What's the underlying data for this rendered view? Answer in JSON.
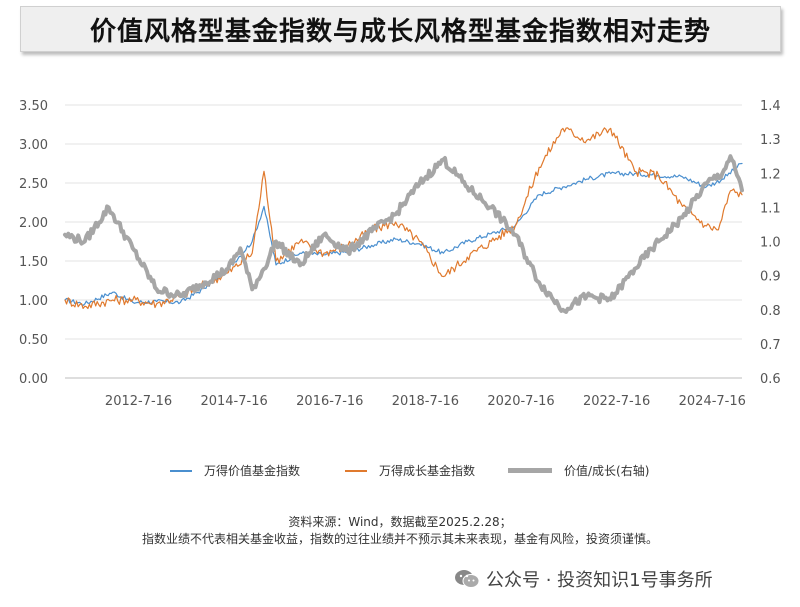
{
  "chart_data": {
    "type": "line",
    "title": "价值风格型基金指数与成长风格型基金指数相对走势",
    "x_tick_labels": [
      "2012-7-16",
      "2014-7-16",
      "2016-7-16",
      "2018-7-16",
      "2020-7-16",
      "2022-7-16",
      "2024-7-16"
    ],
    "x_range": [
      "2011-01-01",
      "2025-02-28"
    ],
    "y_left": {
      "ticks": [
        "0.00",
        "0.50",
        "1.00",
        "1.50",
        "2.00",
        "2.50",
        "3.00",
        "3.50"
      ],
      "ylim": [
        0,
        3.5
      ]
    },
    "y_right": {
      "ticks": [
        "0.6",
        "0.7",
        "0.8",
        "0.9",
        "1.0",
        "1.1",
        "1.2",
        "1.3",
        "1.4"
      ],
      "ylim": [
        0.6,
        1.4
      ]
    },
    "grid": "horizontal",
    "legend_position": "bottom",
    "series": [
      {
        "name": "万得价值基金指数",
        "axis": "left",
        "color": "#4a8fcf",
        "style": "line",
        "points": [
          [
            "2011-01-01",
            1.0
          ],
          [
            "2011-06-01",
            0.95
          ],
          [
            "2012-01-01",
            1.1
          ],
          [
            "2012-06-01",
            0.97
          ],
          [
            "2012-12-01",
            0.98
          ],
          [
            "2013-06-01",
            0.97
          ],
          [
            "2013-12-01",
            1.15
          ],
          [
            "2014-06-01",
            1.4
          ],
          [
            "2014-12-01",
            1.75
          ],
          [
            "2015-03-01",
            2.2
          ],
          [
            "2015-06-01",
            1.45
          ],
          [
            "2015-12-01",
            1.6
          ],
          [
            "2016-06-01",
            1.58
          ],
          [
            "2016-12-01",
            1.62
          ],
          [
            "2017-06-01",
            1.7
          ],
          [
            "2017-12-01",
            1.78
          ],
          [
            "2018-06-01",
            1.72
          ],
          [
            "2018-12-01",
            1.6
          ],
          [
            "2019-06-01",
            1.75
          ],
          [
            "2019-12-01",
            1.85
          ],
          [
            "2020-06-01",
            1.95
          ],
          [
            "2020-12-01",
            2.35
          ],
          [
            "2021-06-01",
            2.45
          ],
          [
            "2021-12-01",
            2.55
          ],
          [
            "2022-06-01",
            2.62
          ],
          [
            "2022-12-01",
            2.62
          ],
          [
            "2023-06-01",
            2.6
          ],
          [
            "2023-12-01",
            2.58
          ],
          [
            "2024-06-01",
            2.45
          ],
          [
            "2024-10-01",
            2.55
          ],
          [
            "2025-02-28",
            2.75
          ]
        ]
      },
      {
        "name": "万得成长基金指数",
        "axis": "left",
        "color": "#e07a2e",
        "style": "line",
        "points": [
          [
            "2011-01-01",
            1.0
          ],
          [
            "2011-06-01",
            0.92
          ],
          [
            "2012-01-01",
            1.0
          ],
          [
            "2012-06-01",
            1.0
          ],
          [
            "2012-12-01",
            0.95
          ],
          [
            "2013-06-01",
            1.05
          ],
          [
            "2013-12-01",
            1.2
          ],
          [
            "2014-06-01",
            1.35
          ],
          [
            "2014-12-01",
            1.6
          ],
          [
            "2015-03-01",
            2.65
          ],
          [
            "2015-06-01",
            1.5
          ],
          [
            "2015-12-01",
            1.75
          ],
          [
            "2016-06-01",
            1.6
          ],
          [
            "2016-12-01",
            1.7
          ],
          [
            "2017-06-01",
            1.9
          ],
          [
            "2017-12-01",
            2.0
          ],
          [
            "2018-06-01",
            1.75
          ],
          [
            "2018-12-01",
            1.3
          ],
          [
            "2019-06-01",
            1.55
          ],
          [
            "2019-12-01",
            1.75
          ],
          [
            "2020-06-01",
            1.95
          ],
          [
            "2020-12-01",
            2.7
          ],
          [
            "2021-06-01",
            3.2
          ],
          [
            "2021-12-01",
            3.05
          ],
          [
            "2022-06-01",
            3.2
          ],
          [
            "2022-12-01",
            2.65
          ],
          [
            "2023-06-01",
            2.6
          ],
          [
            "2023-12-01",
            2.2
          ],
          [
            "2024-06-01",
            1.95
          ],
          [
            "2024-09-01",
            1.9
          ],
          [
            "2024-12-01",
            2.4
          ],
          [
            "2025-02-28",
            2.35
          ]
        ]
      },
      {
        "name": "价值/成长(右轴)",
        "axis": "right",
        "color": "#a6a6a6",
        "style": "thick-line",
        "points": [
          [
            "2011-01-01",
            1.02
          ],
          [
            "2011-06-01",
            1.0
          ],
          [
            "2011-12-01",
            1.1
          ],
          [
            "2012-06-01",
            0.98
          ],
          [
            "2012-12-01",
            0.86
          ],
          [
            "2013-06-01",
            0.84
          ],
          [
            "2013-12-01",
            0.88
          ],
          [
            "2014-06-01",
            0.92
          ],
          [
            "2014-09-01",
            0.98
          ],
          [
            "2014-12-01",
            0.86
          ],
          [
            "2015-03-01",
            0.92
          ],
          [
            "2015-06-01",
            1.0
          ],
          [
            "2015-12-01",
            0.93
          ],
          [
            "2016-06-01",
            1.02
          ],
          [
            "2016-12-01",
            0.97
          ],
          [
            "2017-06-01",
            1.03
          ],
          [
            "2017-12-01",
            1.08
          ],
          [
            "2018-06-01",
            1.17
          ],
          [
            "2018-12-01",
            1.24
          ],
          [
            "2019-06-01",
            1.16
          ],
          [
            "2019-12-01",
            1.1
          ],
          [
            "2020-06-01",
            1.02
          ],
          [
            "2020-12-01",
            0.88
          ],
          [
            "2021-06-01",
            0.8
          ],
          [
            "2021-12-01",
            0.84
          ],
          [
            "2022-06-01",
            0.83
          ],
          [
            "2022-12-01",
            0.92
          ],
          [
            "2023-06-01",
            1.0
          ],
          [
            "2023-12-01",
            1.07
          ],
          [
            "2024-06-01",
            1.17
          ],
          [
            "2024-10-01",
            1.2
          ],
          [
            "2024-12-01",
            1.25
          ],
          [
            "2025-02-28",
            1.15
          ]
        ]
      }
    ]
  },
  "legend": [
    {
      "label": "万得价值基金指数",
      "color": "#4a8fcf",
      "swatch": "thin"
    },
    {
      "label": "万得成长基金指数",
      "color": "#e07a2e",
      "swatch": "thin"
    },
    {
      "label": "价值/成长(右轴)",
      "color": "#a6a6a6",
      "swatch": "thick"
    }
  ],
  "source": {
    "line1": "资料来源：Wind，数据截至2025.2.28；",
    "line2": "指数业绩不代表相关基金收益，指数的过往业绩并不预示其未来表现，基金有风险，投资须谨慎。"
  },
  "watermark": {
    "text": "公众号 · 投资知识1号事务所",
    "icon": "wechat-icon"
  }
}
